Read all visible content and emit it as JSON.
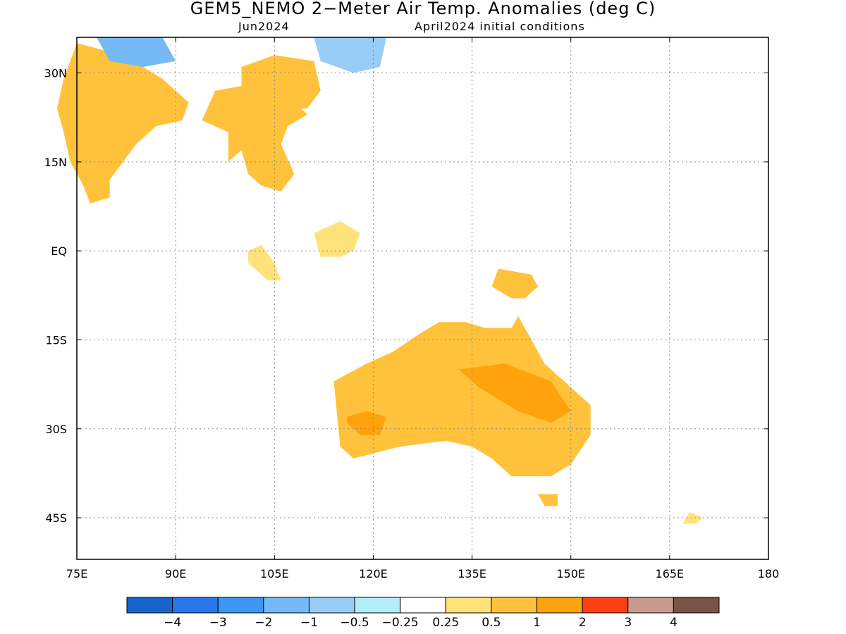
{
  "title": "GEM5_NEMO 2−Meter Air Temp. Anomalies (deg C)",
  "subtitle_left": "Jun2024",
  "subtitle_right": "April2024 initial conditions",
  "map": {
    "lon_range": [
      75,
      180
    ],
    "lat_range": [
      -52,
      36
    ],
    "lon_ticks": [
      {
        "value": 75,
        "label": "75E"
      },
      {
        "value": 90,
        "label": "90E"
      },
      {
        "value": 105,
        "label": "105E"
      },
      {
        "value": 120,
        "label": "120E"
      },
      {
        "value": 135,
        "label": "135E"
      },
      {
        "value": 150,
        "label": "150E"
      },
      {
        "value": 165,
        "label": "165E"
      },
      {
        "value": 180,
        "label": "180"
      }
    ],
    "lat_ticks": [
      {
        "value": 30,
        "label": "30N"
      },
      {
        "value": 15,
        "label": "15N"
      },
      {
        "value": 0,
        "label": "EQ"
      },
      {
        "value": -15,
        "label": "15S"
      },
      {
        "value": -30,
        "label": "30S"
      },
      {
        "value": -45,
        "label": "45S"
      }
    ],
    "grid": true
  },
  "colorbar": {
    "colors": [
      "#1764cc",
      "#2776ea",
      "#3c96f2",
      "#75b9f7",
      "#98cdf8",
      "#b4edfa",
      "#ffffff",
      "#ffe27a",
      "#ffc23a",
      "#ffa20c",
      "#ff3f12",
      "#c89a8c",
      "#7a5246"
    ],
    "labels": [
      "−4",
      "−3",
      "−2",
      "−1",
      "−0.5",
      "−0.25",
      "0.25",
      "0.5",
      "1",
      "2",
      "3",
      "4"
    ]
  },
  "regions": [
    {
      "name": "india-west",
      "value": 0.5,
      "color": "#ffc23a",
      "coords": [
        [
          75,
          35
        ],
        [
          82,
          33
        ],
        [
          88,
          29
        ],
        [
          92,
          25
        ],
        [
          91,
          22
        ],
        [
          87,
          21
        ],
        [
          84,
          18
        ],
        [
          82,
          15
        ],
        [
          80,
          12
        ],
        [
          80,
          9
        ],
        [
          77,
          8
        ],
        [
          76,
          11
        ],
        [
          74,
          15
        ],
        [
          73,
          20
        ],
        [
          72,
          24
        ],
        [
          73,
          29
        ],
        [
          75,
          35
        ]
      ]
    },
    {
      "name": "indochina",
      "value": 0.5,
      "color": "#ffc23a",
      "coords": [
        [
          96,
          27
        ],
        [
          101,
          28
        ],
        [
          107,
          26
        ],
        [
          110,
          23
        ],
        [
          107,
          21
        ],
        [
          106,
          18
        ],
        [
          108,
          13
        ],
        [
          106,
          10
        ],
        [
          103,
          11
        ],
        [
          101,
          13
        ],
        [
          100,
          17
        ],
        [
          98,
          15
        ],
        [
          98,
          20
        ],
        [
          94,
          22
        ],
        [
          96,
          27
        ]
      ]
    },
    {
      "name": "china-south",
      "value": 0.5,
      "color": "#ffc23a",
      "coords": [
        [
          100,
          31
        ],
        [
          105,
          33
        ],
        [
          111,
          32
        ],
        [
          112,
          27
        ],
        [
          110,
          24
        ],
        [
          103,
          24
        ],
        [
          100,
          27
        ],
        [
          100,
          31
        ]
      ]
    },
    {
      "name": "asia-north-cold",
      "value": -1,
      "color": "#75b9f7",
      "coords": [
        [
          78,
          36
        ],
        [
          88,
          36
        ],
        [
          90,
          32
        ],
        [
          85,
          31
        ],
        [
          80,
          32
        ],
        [
          78,
          36
        ]
      ]
    },
    {
      "name": "china-east-cold",
      "value": -0.5,
      "color": "#98cdf8",
      "coords": [
        [
          111,
          36
        ],
        [
          122,
          36
        ],
        [
          121,
          31
        ],
        [
          117,
          30
        ],
        [
          112,
          32
        ],
        [
          111,
          36
        ]
      ]
    },
    {
      "name": "borneo",
      "value": 0.5,
      "color": "#ffe27a",
      "coords": [
        [
          111,
          3
        ],
        [
          115,
          5
        ],
        [
          118,
          3
        ],
        [
          117,
          0
        ],
        [
          115,
          -1
        ],
        [
          112,
          -1
        ],
        [
          111,
          3
        ]
      ]
    },
    {
      "name": "sumatra",
      "value": 0.5,
      "color": "#ffe27a",
      "coords": [
        [
          103,
          1
        ],
        [
          105,
          -2
        ],
        [
          106,
          -5
        ],
        [
          104,
          -5
        ],
        [
          101,
          -2
        ],
        [
          101,
          0
        ],
        [
          103,
          1
        ]
      ]
    },
    {
      "name": "png",
      "value": 0.5,
      "color": "#ffc23a",
      "coords": [
        [
          139,
          -3
        ],
        [
          144,
          -4
        ],
        [
          145,
          -6
        ],
        [
          143,
          -8
        ],
        [
          141,
          -8
        ],
        [
          138,
          -6
        ],
        [
          139,
          -3
        ]
      ]
    },
    {
      "name": "australia",
      "value": 1,
      "color": "#ffc23a",
      "coords": [
        [
          114,
          -22
        ],
        [
          119,
          -19
        ],
        [
          123,
          -17
        ],
        [
          127,
          -14
        ],
        [
          130,
          -12
        ],
        [
          134,
          -12
        ],
        [
          137,
          -13
        ],
        [
          141,
          -13
        ],
        [
          142,
          -11
        ],
        [
          144,
          -15
        ],
        [
          146,
          -19
        ],
        [
          150,
          -23
        ],
        [
          153,
          -26
        ],
        [
          153,
          -31
        ],
        [
          150,
          -36
        ],
        [
          147,
          -38
        ],
        [
          141,
          -38
        ],
        [
          138,
          -35
        ],
        [
          135,
          -33
        ],
        [
          131,
          -32
        ],
        [
          124,
          -33
        ],
        [
          117,
          -35
        ],
        [
          115,
          -33
        ],
        [
          114,
          -22
        ]
      ]
    },
    {
      "name": "australia-core",
      "value": 1.5,
      "color": "#ffa20c",
      "coords": [
        [
          133,
          -20
        ],
        [
          140,
          -19
        ],
        [
          147,
          -22
        ],
        [
          150,
          -27
        ],
        [
          147,
          -29
        ],
        [
          142,
          -27
        ],
        [
          136,
          -23
        ],
        [
          133,
          -20
        ]
      ]
    },
    {
      "name": "australia-sw",
      "value": 1.5,
      "color": "#ffa20c",
      "coords": [
        [
          116,
          -28
        ],
        [
          119,
          -27
        ],
        [
          122,
          -28
        ],
        [
          121,
          -31
        ],
        [
          118,
          -31
        ],
        [
          116,
          -29
        ],
        [
          116,
          -28
        ]
      ]
    },
    {
      "name": "tasmania",
      "value": 0.5,
      "color": "#ffc23a",
      "coords": [
        [
          145,
          -41
        ],
        [
          148,
          -41
        ],
        [
          148,
          -43
        ],
        [
          146,
          -43
        ],
        [
          145,
          -41
        ]
      ]
    },
    {
      "name": "new-zealand",
      "value": 0.5,
      "color": "#ffe27a",
      "coords": [
        [
          168,
          -44
        ],
        [
          170,
          -45
        ],
        [
          169,
          -46
        ],
        [
          167,
          -46
        ],
        [
          168,
          -44
        ]
      ]
    }
  ]
}
